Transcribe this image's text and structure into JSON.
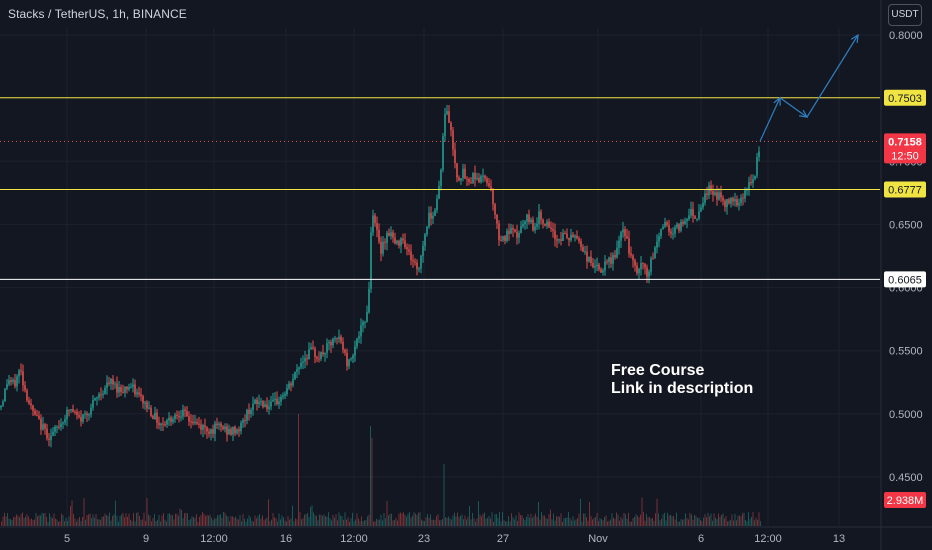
{
  "header": {
    "title": "Stacks / TetherUS, 1h, BINANCE",
    "currency": "USDT"
  },
  "annotation": {
    "line1": "Free Course",
    "line2": "Link in description"
  },
  "colors": {
    "background": "#131722",
    "grid": "#1e222d",
    "up": "#26a69a",
    "down": "#ef5350",
    "level_line": "#f0e442",
    "support_line": "#ffffff",
    "arrow": "#2f7fbf",
    "axis_text": "#b2b5be"
  },
  "chart_data": {
    "type": "candlestick",
    "title": "Stacks / TetherUS, 1h, BINANCE",
    "y_axis": {
      "ticks": [
        "0.8000",
        "0.7500",
        "0.7000",
        "0.6500",
        "0.6000",
        "0.5500",
        "0.5000",
        "0.4500"
      ],
      "ylim": [
        0.432,
        0.822
      ]
    },
    "x_axis": {
      "ticks": [
        "5",
        "9",
        "12:00",
        "16",
        "12:00",
        "23",
        "27",
        "Nov",
        "6",
        "12:00",
        "13"
      ]
    },
    "price_path": [
      [
        0,
        0.505
      ],
      [
        3,
        0.512
      ],
      [
        8,
        0.528
      ],
      [
        14,
        0.522
      ],
      [
        20,
        0.536
      ],
      [
        25,
        0.519
      ],
      [
        32,
        0.502
      ],
      [
        40,
        0.492
      ],
      [
        50,
        0.481
      ],
      [
        60,
        0.492
      ],
      [
        70,
        0.504
      ],
      [
        80,
        0.495
      ],
      [
        90,
        0.504
      ],
      [
        100,
        0.516
      ],
      [
        110,
        0.525
      ],
      [
        120,
        0.519
      ],
      [
        130,
        0.522
      ],
      [
        140,
        0.513
      ],
      [
        150,
        0.503
      ],
      [
        160,
        0.492
      ],
      [
        170,
        0.496
      ],
      [
        180,
        0.502
      ],
      [
        190,
        0.495
      ],
      [
        200,
        0.49
      ],
      [
        210,
        0.487
      ],
      [
        220,
        0.49
      ],
      [
        230,
        0.485
      ],
      [
        240,
        0.489
      ],
      [
        250,
        0.505
      ],
      [
        260,
        0.51
      ],
      [
        270,
        0.505
      ],
      [
        280,
        0.512
      ],
      [
        290,
        0.522
      ],
      [
        300,
        0.54
      ],
      [
        310,
        0.55
      ],
      [
        320,
        0.545
      ],
      [
        330,
        0.555
      ],
      [
        340,
        0.56
      ],
      [
        348,
        0.538
      ],
      [
        355,
        0.555
      ],
      [
        362,
        0.568
      ],
      [
        366,
        0.575
      ],
      [
        369,
        0.6
      ],
      [
        372,
        0.665
      ],
      [
        376,
        0.648
      ],
      [
        380,
        0.628
      ],
      [
        384,
        0.638
      ],
      [
        390,
        0.645
      ],
      [
        396,
        0.632
      ],
      [
        402,
        0.642
      ],
      [
        408,
        0.628
      ],
      [
        414,
        0.62
      ],
      [
        418,
        0.612
      ],
      [
        422,
        0.63
      ],
      [
        428,
        0.655
      ],
      [
        435,
        0.662
      ],
      [
        440,
        0.685
      ],
      [
        443,
        0.718
      ],
      [
        446,
        0.745
      ],
      [
        450,
        0.728
      ],
      [
        454,
        0.705
      ],
      [
        458,
        0.685
      ],
      [
        462,
        0.692
      ],
      [
        468,
        0.682
      ],
      [
        474,
        0.69
      ],
      [
        480,
        0.685
      ],
      [
        486,
        0.688
      ],
      [
        492,
        0.675
      ],
      [
        498,
        0.642
      ],
      [
        504,
        0.638
      ],
      [
        510,
        0.645
      ],
      [
        516,
        0.64
      ],
      [
        522,
        0.648
      ],
      [
        528,
        0.655
      ],
      [
        534,
        0.648
      ],
      [
        540,
        0.658
      ],
      [
        546,
        0.65
      ],
      [
        552,
        0.642
      ],
      [
        558,
        0.638
      ],
      [
        564,
        0.642
      ],
      [
        570,
        0.638
      ],
      [
        576,
        0.642
      ],
      [
        582,
        0.632
      ],
      [
        588,
        0.622
      ],
      [
        594,
        0.618
      ],
      [
        600,
        0.612
      ],
      [
        606,
        0.618
      ],
      [
        612,
        0.622
      ],
      [
        618,
        0.632
      ],
      [
        624,
        0.648
      ],
      [
        630,
        0.625
      ],
      [
        636,
        0.612
      ],
      [
        642,
        0.618
      ],
      [
        648,
        0.61
      ],
      [
        654,
        0.628
      ],
      [
        660,
        0.645
      ],
      [
        666,
        0.652
      ],
      [
        672,
        0.642
      ],
      [
        678,
        0.648
      ],
      [
        684,
        0.652
      ],
      [
        690,
        0.662
      ],
      [
        696,
        0.655
      ],
      [
        702,
        0.668
      ],
      [
        708,
        0.678
      ],
      [
        714,
        0.675
      ],
      [
        720,
        0.672
      ],
      [
        726,
        0.665
      ],
      [
        732,
        0.672
      ],
      [
        738,
        0.668
      ],
      [
        744,
        0.675
      ],
      [
        750,
        0.682
      ],
      [
        755,
        0.688
      ],
      [
        758,
        0.705
      ],
      [
        760,
        0.7158
      ]
    ],
    "levels": [
      {
        "price": 0.7503,
        "label": "0.7503",
        "color": "#f0e442"
      },
      {
        "price": 0.6777,
        "label": "0.6777",
        "color": "#f0e442"
      },
      {
        "price": 0.6065,
        "label": "0.6065",
        "color": "#ffffff"
      }
    ],
    "current_price": {
      "price": 0.7158,
      "label": "0.7158",
      "countdown": "12:50"
    },
    "volume": {
      "label": "2.938M"
    },
    "projection_arrow_prices": [
      0.7158,
      0.7503,
      0.735,
      0.8
    ]
  }
}
